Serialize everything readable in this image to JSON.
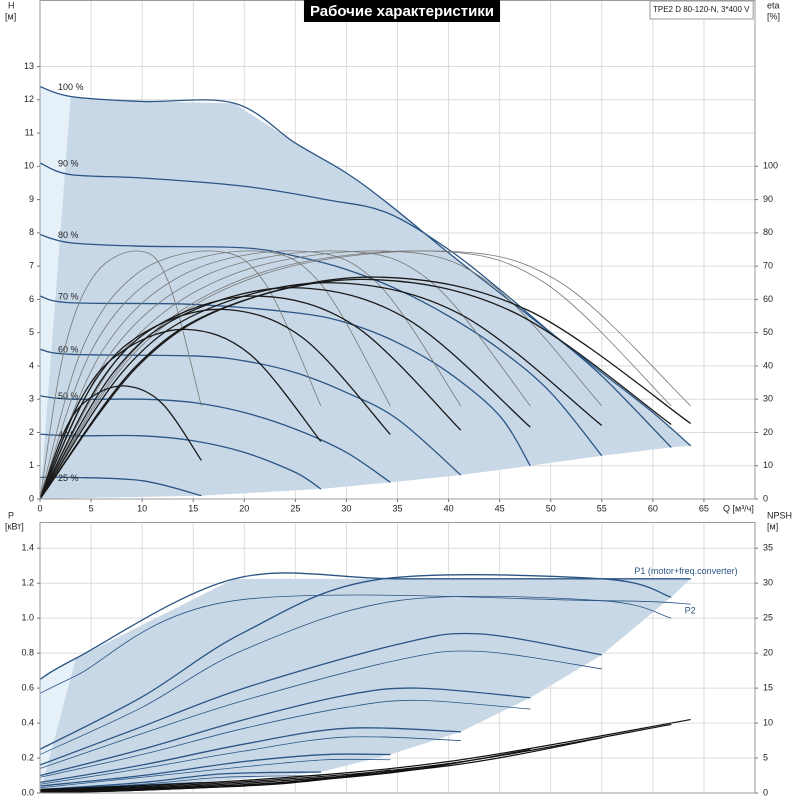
{
  "chart_data": [
    {
      "type": "line",
      "title": "Рабочие характеристики",
      "subtitle": "TPE2 D 80-120-N, 3*400 V",
      "ylabel": "H",
      "ylabel_unit": "[м]",
      "y2label": "eta",
      "y2label_unit": "[%]",
      "xlabel": "Q [м³/ч]",
      "xlim": [
        0,
        70
      ],
      "xticks": [
        0,
        5,
        10,
        15,
        20,
        25,
        30,
        35,
        40,
        45,
        50,
        55,
        60,
        65
      ],
      "ylim": [
        0,
        15
      ],
      "yticks": [
        0,
        1,
        2,
        3,
        4,
        5,
        6,
        7,
        8,
        9,
        10,
        11,
        12,
        13
      ],
      "y2lim": [
        0,
        150
      ],
      "y2ticks": [
        0,
        10,
        20,
        30,
        40,
        50,
        60,
        70,
        80,
        90,
        100
      ],
      "grid": true,
      "area_color": "#c9d8e6",
      "area_edge_color": "#e6f0f9",
      "series": [
        {
          "name": "100 %",
          "color": "#2a5585",
          "line_width": 1.3,
          "x": [
            0,
            3,
            10,
            19,
            25,
            30,
            34,
            40,
            45,
            50,
            55,
            60,
            63.7
          ],
          "values": [
            12.4,
            12.1,
            11.95,
            11.9,
            10.7,
            9.8,
            8.9,
            7.4,
            6.2,
            5.0,
            3.8,
            2.6,
            1.6
          ]
        },
        {
          "name": "90 %",
          "color": "#2a5585",
          "line_width": 1.3,
          "x": [
            0,
            3,
            10,
            20,
            28,
            34,
            40,
            45,
            50,
            55,
            61.8
          ],
          "values": [
            10.1,
            9.75,
            9.65,
            9.4,
            9.0,
            8.6,
            7.5,
            6.3,
            5.0,
            3.7,
            1.55
          ]
        },
        {
          "name": "80 %",
          "color": "#2a5585",
          "line_width": 1.3,
          "x": [
            0,
            3,
            10,
            20,
            25,
            30,
            35,
            40,
            45,
            50,
            55
          ],
          "values": [
            7.95,
            7.7,
            7.6,
            7.55,
            7.3,
            6.9,
            6.3,
            5.5,
            4.5,
            3.2,
            1.3
          ]
        },
        {
          "name": "70 %",
          "color": "#2a5585",
          "line_width": 1.3,
          "x": [
            0,
            3,
            15,
            25,
            30,
            35,
            40,
            45,
            48
          ],
          "values": [
            6.1,
            5.9,
            5.85,
            5.6,
            5.3,
            4.7,
            3.8,
            2.5,
            1.0
          ]
        },
        {
          "name": "60 %",
          "color": "#2a5585",
          "line_width": 1.3,
          "x": [
            0,
            3,
            15,
            20,
            25,
            30,
            35,
            41.2
          ],
          "values": [
            4.5,
            4.35,
            4.3,
            4.15,
            3.8,
            3.2,
            2.4,
            0.72
          ]
        },
        {
          "name": "50 %",
          "color": "#2a5585",
          "line_width": 1.3,
          "x": [
            0,
            3,
            10,
            15,
            20,
            25,
            30,
            34.3
          ],
          "values": [
            3.1,
            3.0,
            3.0,
            2.9,
            2.6,
            2.1,
            1.4,
            0.5
          ]
        },
        {
          "name": "40 %",
          "color": "#2a5585",
          "line_width": 1.3,
          "x": [
            0,
            3,
            10,
            15,
            20,
            25,
            27.5
          ],
          "values": [
            1.95,
            1.9,
            1.9,
            1.75,
            1.4,
            0.8,
            0.3
          ]
        },
        {
          "name": "25 %",
          "color": "#2a5585",
          "line_width": 1.3,
          "x": [
            0,
            3,
            10,
            15.8
          ],
          "values": [
            0.65,
            0.65,
            0.55,
            0.1
          ]
        },
        {
          "axis": "y2",
          "color": "#777777",
          "line_width": 0.8,
          "x": [
            0,
            2.4,
            5.5,
            9.8,
            12.6,
            15.8
          ],
          "values": [
            0,
            45,
            68,
            74.5,
            65,
            28
          ]
        },
        {
          "axis": "y2",
          "color": "#777777",
          "line_width": 0.8,
          "x": [
            0,
            4.1,
            9.6,
            17.1,
            22,
            27.5
          ],
          "values": [
            0,
            45,
            68,
            74.5,
            65,
            28
          ]
        },
        {
          "axis": "y2",
          "color": "#777777",
          "line_width": 0.8,
          "x": [
            0,
            5.1,
            12,
            21.3,
            27.4,
            34.3
          ],
          "values": [
            0,
            45,
            68,
            74.5,
            65,
            28
          ]
        },
        {
          "axis": "y2",
          "color": "#777777",
          "line_width": 0.8,
          "x": [
            0,
            6.2,
            14.4,
            25.5,
            33,
            41.2
          ],
          "values": [
            0,
            45,
            68,
            74.5,
            65,
            28
          ]
        },
        {
          "axis": "y2",
          "color": "#777777",
          "line_width": 0.8,
          "x": [
            0,
            7.2,
            16.8,
            29.8,
            38.4,
            48
          ],
          "values": [
            0,
            45,
            68,
            74.5,
            65,
            28
          ]
        },
        {
          "axis": "y2",
          "color": "#777777",
          "line_width": 0.8,
          "x": [
            0,
            8.3,
            19.3,
            34.1,
            44,
            55
          ],
          "values": [
            0,
            45,
            68,
            74.5,
            65,
            28
          ]
        },
        {
          "axis": "y2",
          "color": "#777777",
          "line_width": 0.8,
          "x": [
            0,
            9.3,
            21.6,
            38.3,
            49.4,
            61.8
          ],
          "values": [
            0,
            45,
            68,
            74.5,
            65,
            28
          ]
        },
        {
          "axis": "y2",
          "color": "#777777",
          "line_width": 0.8,
          "x": [
            0,
            9.6,
            22.3,
            39.5,
            51,
            63.7
          ],
          "values": [
            0,
            45,
            68,
            74.5,
            65,
            28
          ]
        },
        {
          "axis": "y2",
          "color": "#1a1a1a",
          "line_width": 1.3,
          "x": [
            0,
            2.4,
            4.7,
            8.2,
            11.9,
            15.8
          ],
          "values": [
            0,
            20.4,
            29.9,
            34,
            28.9,
            11.6
          ]
        },
        {
          "axis": "y2",
          "color": "#1a1a1a",
          "line_width": 1.3,
          "x": [
            0,
            4.1,
            8.3,
            14.3,
            20.6,
            27.5
          ],
          "values": [
            0,
            30.6,
            44.9,
            51,
            43.4,
            17.3
          ]
        },
        {
          "axis": "y2",
          "color": "#1a1a1a",
          "line_width": 1.3,
          "x": [
            0,
            5.1,
            10.3,
            17.8,
            25.7,
            34.3
          ],
          "values": [
            0,
            34.2,
            50.2,
            57,
            48.5,
            19.4
          ]
        },
        {
          "axis": "y2",
          "color": "#1a1a1a",
          "line_width": 1.3,
          "x": [
            0,
            6.2,
            12.4,
            21.4,
            30.9,
            41.2
          ],
          "values": [
            0,
            36.6,
            53.7,
            61,
            51.9,
            20.7
          ]
        },
        {
          "axis": "y2",
          "color": "#1a1a1a",
          "line_width": 1.3,
          "x": [
            0,
            7.2,
            14.4,
            25,
            36,
            48
          ],
          "values": [
            0,
            38.1,
            55.9,
            63.5,
            54,
            21.6
          ]
        },
        {
          "axis": "y2",
          "color": "#1a1a1a",
          "line_width": 1.3,
          "x": [
            0,
            8.3,
            16.5,
            28.6,
            41.3,
            55
          ],
          "values": [
            0,
            39,
            57.2,
            65,
            55.3,
            22.1
          ]
        },
        {
          "axis": "y2",
          "color": "#1a1a1a",
          "line_width": 1.3,
          "x": [
            0,
            9.3,
            18.5,
            32.1,
            46.4,
            61.8
          ],
          "values": [
            0,
            39.6,
            58.1,
            66,
            56.1,
            22.4
          ]
        },
        {
          "axis": "y2",
          "color": "#1a1a1a",
          "line_width": 1.3,
          "x": [
            0,
            9.6,
            19.1,
            33.1,
            47.8,
            63.7
          ],
          "values": [
            0,
            40,
            58.7,
            66.7,
            56.7,
            22.7
          ]
        }
      ]
    },
    {
      "type": "line",
      "ylabel": "P",
      "ylabel_unit": "[кВт]",
      "y2label": "NPSH",
      "y2label_unit": "[м]",
      "xlim": [
        0,
        70
      ],
      "ylim": [
        0,
        1.55
      ],
      "yticks": [
        {
          "value": 0,
          "label": "0.0"
        },
        0.2,
        0.4,
        0.6,
        0.8,
        {
          "value": 1,
          "label": "1.0"
        },
        1.2,
        1.4
      ],
      "y2lim": [
        0,
        38.75
      ],
      "y2ticks": [
        0,
        5,
        10,
        15,
        20,
        25,
        30,
        35
      ],
      "grid": true,
      "area_color": "#c9d8e6",
      "area_edge_color": "#e6f0f9",
      "series": [
        {
          "name": "P1 (motor+freq.converter)",
          "color": "#2a5585",
          "line_width": 1.3,
          "x": [
            0,
            3.5,
            19,
            35,
            55,
            63.7
          ],
          "values": [
            0.65,
            0.77,
            1.225,
            1.225,
            1.225,
            1.225
          ]
        },
        {
          "color": "#2a5585",
          "line_width": 1.3,
          "x": [
            0,
            10,
            20,
            33,
            55,
            61.8
          ],
          "values": [
            0.25,
            0.55,
            0.92,
            1.22,
            1.225,
            1.12
          ]
        },
        {
          "color": "#2a5585",
          "line_width": 1.3,
          "x": [
            0,
            10,
            20,
            35,
            43,
            55
          ],
          "values": [
            0.16,
            0.38,
            0.6,
            0.85,
            0.91,
            0.79
          ]
        },
        {
          "color": "#2a5585",
          "line_width": 1.3,
          "x": [
            0,
            10,
            20,
            30,
            37,
            48
          ],
          "values": [
            0.1,
            0.25,
            0.42,
            0.56,
            0.6,
            0.545
          ]
        },
        {
          "color": "#2a5585",
          "line_width": 1.3,
          "x": [
            0,
            10,
            20,
            30,
            41.2
          ],
          "values": [
            0.06,
            0.16,
            0.28,
            0.37,
            0.35
          ]
        },
        {
          "color": "#2a5585",
          "line_width": 1.3,
          "x": [
            0,
            10,
            20,
            28,
            34.3
          ],
          "values": [
            0.04,
            0.1,
            0.18,
            0.22,
            0.22
          ]
        },
        {
          "color": "#2a5585",
          "line_width": 1.3,
          "x": [
            0,
            10,
            18,
            27.5
          ],
          "values": [
            0.02,
            0.06,
            0.11,
            0.12
          ]
        },
        {
          "color": "#2a5585",
          "line_width": 1.3,
          "x": [
            0,
            8,
            15.8
          ],
          "values": [
            0.01,
            0.04,
            0.06
          ]
        },
        {
          "name": "P2",
          "color": "#2a5585",
          "line_width": 0.8,
          "x": [
            0,
            3.5,
            19,
            55,
            63.7
          ],
          "values": [
            0.57,
            0.67,
            1.1,
            1.1,
            1.08
          ]
        },
        {
          "color": "#2a5585",
          "line_width": 0.8,
          "x": [
            0,
            10,
            20,
            35,
            55,
            61.8
          ],
          "values": [
            0.22,
            0.49,
            0.82,
            1.1,
            1.1,
            1.0
          ]
        },
        {
          "color": "#2a5585",
          "line_width": 0.8,
          "x": [
            0,
            10,
            20,
            35,
            43,
            55
          ],
          "values": [
            0.14,
            0.34,
            0.53,
            0.76,
            0.81,
            0.71
          ]
        },
        {
          "color": "#2a5585",
          "line_width": 0.8,
          "x": [
            0,
            10,
            20,
            30,
            37,
            48
          ],
          "values": [
            0.09,
            0.22,
            0.37,
            0.49,
            0.53,
            0.48
          ]
        },
        {
          "color": "#2a5585",
          "line_width": 0.8,
          "x": [
            0,
            10,
            20,
            30,
            41.2
          ],
          "values": [
            0.05,
            0.14,
            0.24,
            0.32,
            0.3
          ]
        },
        {
          "color": "#2a5585",
          "line_width": 0.8,
          "x": [
            0,
            10,
            20,
            28,
            34.3
          ],
          "values": [
            0.03,
            0.09,
            0.15,
            0.19,
            0.19
          ]
        },
        {
          "color": "#2a5585",
          "line_width": 0.8,
          "x": [
            0,
            10,
            18,
            27.5
          ],
          "values": [
            0.02,
            0.05,
            0.09,
            0.1
          ]
        },
        {
          "color": "#2a5585",
          "line_width": 0.8,
          "x": [
            0,
            8,
            15.8
          ],
          "values": [
            0.01,
            0.03,
            0.05
          ]
        },
        {
          "axis": "y2",
          "color": "#111111",
          "line_width": 1.2,
          "x": [
            0,
            20,
            40,
            63.7
          ],
          "values": [
            0.5,
            1.8,
            4.5,
            10.5
          ]
        },
        {
          "axis": "y2",
          "color": "#111111",
          "line_width": 1.2,
          "x": [
            0,
            20,
            40,
            61.8
          ],
          "values": [
            0.4,
            1.6,
            4.2,
            9.8
          ]
        },
        {
          "axis": "y2",
          "color": "#111111",
          "line_width": 1.2,
          "x": [
            0,
            20,
            40,
            55
          ],
          "values": [
            0.3,
            1.4,
            3.9,
            7.9
          ]
        },
        {
          "axis": "y2",
          "color": "#111111",
          "line_width": 1.2,
          "x": [
            0,
            20,
            35,
            48
          ],
          "values": [
            0.2,
            1.2,
            3.0,
            6.2
          ]
        },
        {
          "axis": "y2",
          "color": "#111111",
          "line_width": 1.2,
          "x": [
            0,
            20,
            30,
            41.2
          ],
          "values": [
            0.15,
            1.0,
            2.3,
            4.4
          ]
        },
        {
          "axis": "y2",
          "color": "#111111",
          "line_width": 1.2,
          "x": [
            0,
            15,
            25,
            34.3
          ],
          "values": [
            0.1,
            0.7,
            1.6,
            3.3
          ]
        },
        {
          "axis": "y2",
          "color": "#111111",
          "line_width": 1.2,
          "x": [
            0,
            10,
            20,
            27.5
          ],
          "values": [
            0.1,
            0.4,
            1.1,
            2.0
          ]
        },
        {
          "axis": "y2",
          "color": "#111111",
          "line_width": 1.2,
          "x": [
            0,
            8,
            15.8
          ],
          "values": [
            0.05,
            0.3,
            0.8
          ]
        }
      ]
    }
  ]
}
